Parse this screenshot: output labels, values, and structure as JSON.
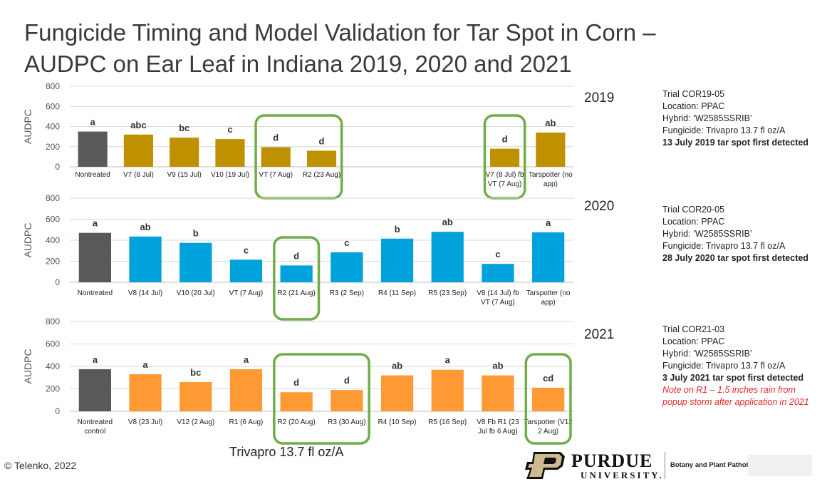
{
  "title_line1": "Fungicide Timing and Model Validation for Tar Spot in Corn –",
  "title_line2": "AUDPC on Ear Leaf in Indiana 2019, 2020 and 2021",
  "footer_text": "Trivapro 13.7 fl oz/A",
  "copyright": "© Telenko, 2022",
  "purdue": {
    "name": "PURDUE",
    "sub": "UNIVERSITY.",
    "dept": "Botany and Plant Pathology"
  },
  "colors": {
    "nontreated": "#595959",
    "y2019": "#bf9000",
    "y2020": "#00a2db",
    "y2021": "#ff9933",
    "highlight": "#70ad47",
    "note": "#e8262a"
  },
  "chart_data": [
    {
      "type": "bar",
      "year": "2019",
      "ylabel": "AUDPC",
      "ylim": [
        0,
        800
      ],
      "yticks": [
        0,
        200,
        400,
        600,
        800
      ],
      "categories": [
        "Nontreated",
        "V7 (8 Jul)",
        "V9 (15 Jul)",
        "V10 (19 Jul)",
        "VT (7 Aug)",
        "R2 (23 Aug)",
        "",
        "",
        "",
        "V7 (8 Jul) fb VT (7 Aug)",
        "Tarspotter (no app)"
      ],
      "values": [
        350,
        320,
        290,
        275,
        195,
        160,
        null,
        null,
        null,
        180,
        340
      ],
      "letters": [
        "a",
        "abc",
        "bc",
        "c",
        "d",
        "d",
        "",
        "",
        "",
        "d",
        "ab"
      ],
      "highlight_groups": [
        [
          4,
          5
        ],
        [
          9
        ]
      ],
      "trial": {
        "lines": [
          "Trial COR19-05",
          "Location: PPAC",
          "Hybrid: ‘W2585SSRIB’",
          "Fungicide: Trivapro 13.7 fl oz/A"
        ],
        "detected": "13 July 2019 tar spot first detected",
        "note": ""
      }
    },
    {
      "type": "bar",
      "year": "2020",
      "ylabel": "AUDPC",
      "ylim": [
        0,
        800
      ],
      "yticks": [
        0,
        200,
        400,
        600,
        800
      ],
      "categories": [
        "Nontreated",
        "V8 (14 Jul)",
        "V10 (20 Jul)",
        "VT (7 Aug)",
        "R2 (21 Aug)",
        "R3 (2 Sep)",
        "R4 (11 Sep)",
        "R5 (23 Sep)",
        "V8 (14 Jul) fb VT (7 Aug)",
        "Tarspotter (no app)"
      ],
      "values": [
        470,
        435,
        375,
        215,
        160,
        285,
        415,
        480,
        175,
        475
      ],
      "letters": [
        "a",
        "ab",
        "b",
        "c",
        "d",
        "c",
        "b",
        "ab",
        "c",
        "a"
      ],
      "highlight_groups": [
        [
          4
        ]
      ],
      "trial": {
        "lines": [
          "Trial COR20-05",
          "Location: PPAC",
          "Hybrid: ‘W2585SSRIB’",
          "Fungicide: Trivapro 13.7 fl oz/A"
        ],
        "detected": "28 July 2020 tar spot first detected",
        "note": ""
      }
    },
    {
      "type": "bar",
      "year": "2021",
      "ylabel": "AUDPC",
      "ylim": [
        0,
        800
      ],
      "yticks": [
        0,
        200,
        400,
        600,
        800
      ],
      "categories": [
        "Nontreated control",
        "V8 (23 Jul)",
        "V12 (2 Aug)",
        "R1 (6 Aug)",
        "R2 (20 Aug)",
        "R3 (30 Aug)",
        "R4 (10 Sep)",
        "R5 (16 Sep)",
        "V8 Fb R1 (23 Jul fb 6 Aug)",
        "Tarspotter (V12 2 Aug)"
      ],
      "values": [
        375,
        330,
        260,
        375,
        170,
        190,
        320,
        370,
        320,
        210
      ],
      "letters": [
        "a",
        "a",
        "bc",
        "a",
        "d",
        "d",
        "ab",
        "a",
        "ab",
        "cd"
      ],
      "highlight_groups": [
        [
          4,
          5
        ],
        [
          9
        ]
      ],
      "trial": {
        "lines": [
          "Trial COR21-03",
          "Location: PPAC",
          "Hybrid: ‘W2585SSRIB’",
          "Fungicide: Trivapro 13.7 fl oz/A"
        ],
        "detected": "3 July 2021 tar spot first detected",
        "note": "Note on R1 – 1.5 inches rain from popup storm after application in 2021"
      }
    }
  ]
}
